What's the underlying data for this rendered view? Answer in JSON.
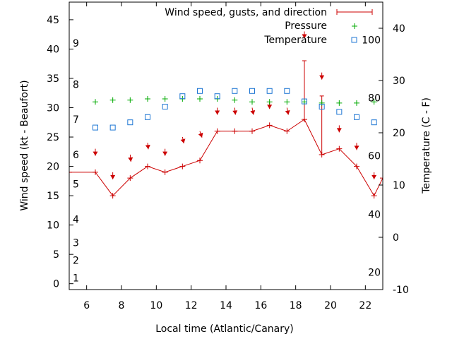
{
  "chart_data": {
    "type": "line",
    "title": "",
    "xlabel": "Local time (Atlantic/Canary)",
    "ylabel": "Wind speed (kt - Beaufort)",
    "y2label": "Temperature (C - F)",
    "xlim": [
      5,
      23
    ],
    "ylim": [
      -1,
      48
    ],
    "y2lim": [
      -10,
      45
    ],
    "x_ticks": [
      6,
      8,
      10,
      12,
      14,
      16,
      18,
      20,
      22
    ],
    "y_ticks": [
      0,
      5,
      10,
      15,
      20,
      25,
      30,
      35,
      40,
      45
    ],
    "y2_ticks": [
      -10,
      0,
      10,
      20,
      30,
      40
    ],
    "beaufort_marks": [
      {
        "label": "1",
        "y": 1
      },
      {
        "label": "2",
        "y": 4
      },
      {
        "label": "3",
        "y": 7
      },
      {
        "label": "4",
        "y": 11
      },
      {
        "label": "5",
        "y": 17
      },
      {
        "label": "6",
        "y": 22
      },
      {
        "label": "7",
        "y": 28
      },
      {
        "label": "8",
        "y": 34
      },
      {
        "label": "9",
        "y": 41
      }
    ],
    "fahrenheit_marks": [
      {
        "label": "20",
        "temp_c": -6.7
      },
      {
        "label": "40",
        "temp_c": 4.4
      },
      {
        "label": "60",
        "temp_c": 15.6
      },
      {
        "label": "80",
        "temp_c": 26.7
      },
      {
        "label": "100",
        "temp_c": 37.8
      }
    ],
    "legend_position": "top-right",
    "colors": {
      "wind": "#cc0000",
      "pressure": "#00aa00",
      "temperature": "#1f77d4",
      "axes": "#000000"
    },
    "series": [
      {
        "name": "Wind speed, gusts, and direction",
        "axis": "left",
        "style": "line-points",
        "x": [
          5,
          6.5,
          7.5,
          8.5,
          9.5,
          10.5,
          11.5,
          12.5,
          13.5,
          14.5,
          15.5,
          16.5,
          17.5,
          18.5,
          19.5,
          20.5,
          21.5,
          22.5,
          23
        ],
        "y": [
          19,
          19,
          15,
          18,
          20,
          19,
          20,
          21,
          26,
          26,
          26,
          27,
          26,
          28,
          22,
          23,
          20,
          15,
          18
        ]
      },
      {
        "name": "Gusts",
        "axis": "left",
        "style": "errorbar",
        "bars": [
          {
            "x": 18.5,
            "low": 28,
            "high": 38
          },
          {
            "x": 19.5,
            "low": 22,
            "high": 32
          }
        ]
      },
      {
        "name": "Direction",
        "axis": "left",
        "style": "arrows",
        "arrows": [
          {
            "x": 6.5,
            "y": 23,
            "dx": 0,
            "dy": -10
          },
          {
            "x": 7.5,
            "y": 19,
            "dx": 0,
            "dy": -10
          },
          {
            "x": 8.5,
            "y": 22,
            "dx": 1,
            "dy": -10
          },
          {
            "x": 9.5,
            "y": 24,
            "dx": 1,
            "dy": -9
          },
          {
            "x": 10.5,
            "y": 23,
            "dx": 0,
            "dy": -10
          },
          {
            "x": 11.5,
            "y": 25,
            "dx": 2,
            "dy": -9
          },
          {
            "x": 12.5,
            "y": 26,
            "dx": 3,
            "dy": -9
          },
          {
            "x": 13.5,
            "y": 30,
            "dx": 0,
            "dy": -10
          },
          {
            "x": 14.5,
            "y": 30,
            "dx": 1,
            "dy": -10
          },
          {
            "x": 15.5,
            "y": 30,
            "dx": 2,
            "dy": -10
          },
          {
            "x": 16.5,
            "y": 31,
            "dx": 0,
            "dy": -10
          },
          {
            "x": 17.5,
            "y": 30,
            "dx": 2,
            "dy": -10
          },
          {
            "x": 18.5,
            "y": 43,
            "dx": 0,
            "dy": -10
          },
          {
            "x": 19.5,
            "y": 36,
            "dx": 0,
            "dy": -10
          },
          {
            "x": 20.5,
            "y": 27,
            "dx": 0,
            "dy": -10
          },
          {
            "x": 21.5,
            "y": 24,
            "dx": 0,
            "dy": -10
          },
          {
            "x": 22.5,
            "y": 19,
            "dx": 0,
            "dy": -10
          }
        ]
      },
      {
        "name": "Pressure",
        "axis": "left",
        "style": "points-plus",
        "x": [
          6.5,
          7.5,
          8.5,
          9.5,
          10.5,
          11.5,
          12.5,
          13.5,
          14.5,
          15.5,
          16.5,
          17.5,
          18.5,
          19.5,
          20.5,
          21.5,
          22.5
        ],
        "y": [
          31,
          31.3,
          31.3,
          31.5,
          31.5,
          31.5,
          31.5,
          31.5,
          31.3,
          31,
          31,
          31,
          31,
          30.8,
          30.8,
          30.8,
          31
        ]
      },
      {
        "name": "Temperature",
        "axis": "right",
        "style": "points-square",
        "x": [
          6.5,
          7.5,
          8.5,
          9.5,
          10.5,
          11.5,
          12.5,
          13.5,
          14.5,
          15.5,
          16.5,
          17.5,
          18.5,
          19.5,
          20.5,
          21.5,
          22.5
        ],
        "y": [
          21,
          21,
          22,
          23,
          25,
          27,
          28,
          27,
          28,
          28,
          28,
          28,
          26,
          25,
          24,
          23,
          22
        ]
      }
    ]
  }
}
